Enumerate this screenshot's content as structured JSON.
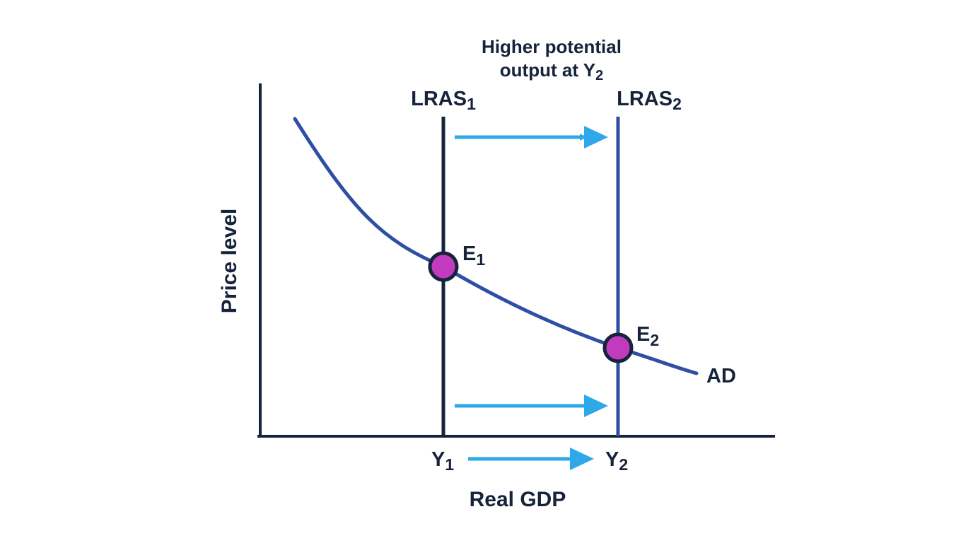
{
  "annotation": {
    "line1": "Higher potential",
    "line2_text": "output at Y",
    "line2_sub": "2"
  },
  "lras1": {
    "text": "LRAS",
    "sub": "1"
  },
  "lras2": {
    "text": "LRAS",
    "sub": "2"
  },
  "e1": {
    "text": "E",
    "sub": "1"
  },
  "e2": {
    "text": "E",
    "sub": "2"
  },
  "ad_label": "AD",
  "y1": {
    "text": "Y",
    "sub": "1"
  },
  "y2": {
    "text": "Y",
    "sub": "2"
  },
  "x_axis_label": "Real GDP",
  "y_axis_label": "Price level",
  "colors": {
    "axis": "#16233a",
    "lras1": "#16233a",
    "lras2": "#2e4fa3",
    "ad_curve": "#2e4fa3",
    "shift_arrow": "#2fa8ea",
    "equilibrium_fill": "#c23bbf",
    "equilibrium_stroke": "#16233a"
  }
}
